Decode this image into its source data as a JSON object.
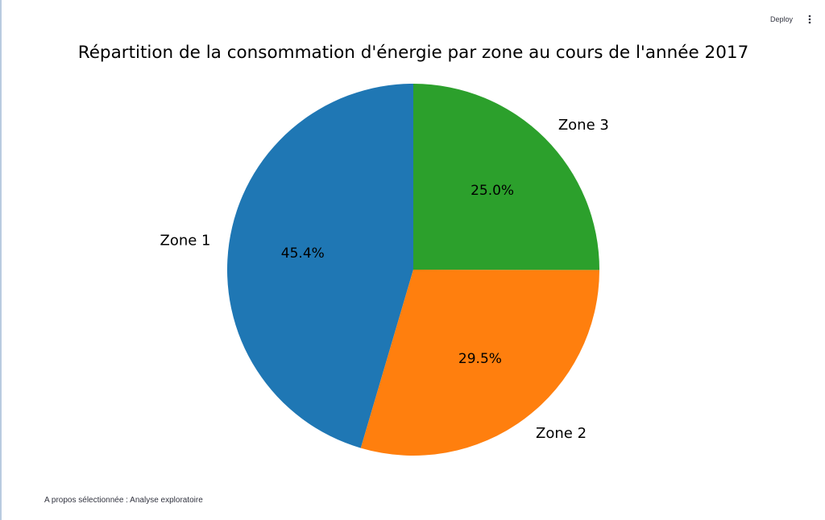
{
  "header": {
    "deploy_label": "Deploy",
    "menu_icon": "more-vertical-icon"
  },
  "footer": {
    "status_text": "A propos sélectionnée : Analyse exploratoire"
  },
  "chart_data": {
    "type": "pie",
    "title": "Répartition de la consommation d'énergie par zone au cours de l'année 2017",
    "labels": [
      "Zone 1",
      "Zone 2",
      "Zone 3"
    ],
    "values": [
      45.4,
      29.5,
      25.0
    ],
    "percent_labels": [
      "45.4%",
      "29.5%",
      "25.0%"
    ],
    "colors": [
      "#1f77b4",
      "#ff7f0e",
      "#2ca02c"
    ],
    "start_angle": 90,
    "direction": "counterclockwise"
  }
}
